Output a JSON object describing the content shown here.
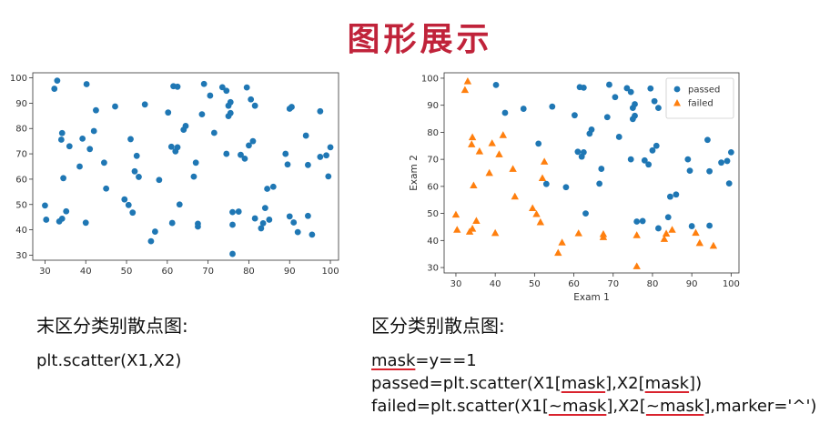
{
  "title": "图形展示",
  "colors": {
    "passed": "#1f77b4",
    "failed": "#ff7f0e",
    "title": "#c0233a",
    "underline": "#d9232e"
  },
  "left_caption": "末区分类别散点图:",
  "right_caption": "区分类别散点图:",
  "left_code": "plt.scatter(X1,X2)",
  "right_code": {
    "line1": {
      "a": "mask",
      "b": "=y==1"
    },
    "line2": {
      "a": "passed=plt.scatter(X1[",
      "b": "mask",
      "c": "],X2[",
      "d": "mask",
      "e": "])"
    },
    "line3": {
      "a": "failed=plt.scatter(X1[",
      "b": "~mask",
      "c": "],X2[",
      "d": "~mask",
      "e": "],marker='^')"
    }
  },
  "chart_data": [
    {
      "type": "scatter",
      "title": "",
      "xlabel": "",
      "ylabel": "",
      "xlim": [
        27,
        102
      ],
      "ylim": [
        28,
        102
      ],
      "xticks": [
        30,
        40,
        50,
        60,
        70,
        80,
        90,
        100
      ],
      "yticks": [
        30,
        40,
        50,
        60,
        70,
        80,
        90,
        100
      ],
      "series": [
        {
          "marker": "circle",
          "points": [
            [
              30,
              49.6
            ],
            [
              30.3,
              44
            ],
            [
              32.3,
              95.7
            ],
            [
              33,
              98.9
            ],
            [
              33.5,
              43.3
            ],
            [
              34,
              75.6
            ],
            [
              34.2,
              78.2
            ],
            [
              34.5,
              60.4
            ],
            [
              34.2,
              44.4
            ],
            [
              35.2,
              47.3
            ],
            [
              36,
              73
            ],
            [
              38.5,
              65
            ],
            [
              39.2,
              76
            ],
            [
              40,
              42.8
            ],
            [
              40.2,
              97.5
            ],
            [
              41,
              71.9
            ],
            [
              42,
              79
            ],
            [
              42.5,
              87.2
            ],
            [
              44.5,
              66.5
            ],
            [
              45,
              56.3
            ],
            [
              47.2,
              88.7
            ],
            [
              49.5,
              52
            ],
            [
              50.5,
              49.8
            ],
            [
              51,
              75.8
            ],
            [
              51.5,
              46.8
            ],
            [
              52,
              63.1
            ],
            [
              52.5,
              69.2
            ],
            [
              53,
              60.9
            ],
            [
              54.5,
              89.5
            ],
            [
              56,
              35.5
            ],
            [
              57,
              39.3
            ],
            [
              58,
              59.7
            ],
            [
              60.2,
              86.3
            ],
            [
              61,
              72.8
            ],
            [
              61.2,
              42.7
            ],
            [
              61.5,
              96.7
            ],
            [
              62.5,
              96.5
            ],
            [
              62.5,
              72.6
            ],
            [
              62,
              71
            ],
            [
              63,
              50
            ],
            [
              64,
              79.5
            ],
            [
              64.5,
              81
            ],
            [
              67,
              66.5
            ],
            [
              66.5,
              61
            ],
            [
              67.5,
              41.3
            ],
            [
              67.5,
              42.4
            ],
            [
              68.5,
              85.6
            ],
            [
              69,
              97.6
            ],
            [
              70.5,
              93
            ],
            [
              71.5,
              78.3
            ],
            [
              73.5,
              96.3
            ],
            [
              74.5,
              94.9
            ],
            [
              74.5,
              70
            ],
            [
              75,
              84.9
            ],
            [
              75,
              89
            ],
            [
              75.5,
              90.4
            ],
            [
              75.5,
              86.1
            ],
            [
              76,
              47
            ],
            [
              76,
              42
            ],
            [
              76,
              30.5
            ],
            [
              77.5,
              47.2
            ],
            [
              78,
              69.6
            ],
            [
              79,
              68.1
            ],
            [
              79.5,
              96.2
            ],
            [
              80,
              73.3
            ],
            [
              80.5,
              91.5
            ],
            [
              81,
              75
            ],
            [
              81.5,
              89
            ],
            [
              81.5,
              44.5
            ],
            [
              83,
              40.6
            ],
            [
              83.5,
              42.6
            ],
            [
              84,
              48.6
            ],
            [
              84.5,
              56.2
            ],
            [
              85,
              44
            ],
            [
              86,
              57
            ],
            [
              89,
              70
            ],
            [
              89.5,
              65.8
            ],
            [
              90,
              87.8
            ],
            [
              90,
              45.3
            ],
            [
              90.5,
              88.5
            ],
            [
              91,
              42.9
            ],
            [
              92,
              39.1
            ],
            [
              94,
              77.2
            ],
            [
              94.5,
              65.6
            ],
            [
              94.5,
              45.5
            ],
            [
              95.5,
              38.1
            ],
            [
              97.5,
              86.8
            ],
            [
              97.5,
              68.8
            ],
            [
              99,
              69.4
            ],
            [
              99.5,
              61.1
            ],
            [
              100,
              72.6
            ]
          ]
        }
      ]
    },
    {
      "type": "scatter",
      "title": "",
      "xlabel": "Exam 1",
      "ylabel": "Exam 2",
      "xlim": [
        27,
        102
      ],
      "ylim": [
        28,
        102
      ],
      "xticks": [
        30,
        40,
        50,
        60,
        70,
        80,
        90,
        100
      ],
      "yticks": [
        30,
        40,
        50,
        60,
        70,
        80,
        90,
        100
      ],
      "legend": "top-right",
      "series": [
        {
          "name": "passed",
          "marker": "circle",
          "points": [
            [
              40.2,
              97.5
            ],
            [
              42.5,
              87.2
            ],
            [
              47.2,
              88.7
            ],
            [
              51,
              75.8
            ],
            [
              53,
              60.9
            ],
            [
              54.5,
              89.5
            ],
            [
              58,
              59.7
            ],
            [
              60.2,
              86.3
            ],
            [
              61,
              72.8
            ],
            [
              61.5,
              96.7
            ],
            [
              62.5,
              96.5
            ],
            [
              62.5,
              72.6
            ],
            [
              62,
              71
            ],
            [
              63,
              50
            ],
            [
              64,
              79.5
            ],
            [
              64.5,
              81
            ],
            [
              67,
              66.5
            ],
            [
              66.5,
              61
            ],
            [
              68.5,
              85.6
            ],
            [
              69,
              97.6
            ],
            [
              70.5,
              93
            ],
            [
              71.5,
              78.3
            ],
            [
              73.5,
              96.3
            ],
            [
              74.5,
              94.9
            ],
            [
              74.5,
              70
            ],
            [
              75,
              84.9
            ],
            [
              75,
              89
            ],
            [
              75.5,
              90.4
            ],
            [
              75.5,
              86.1
            ],
            [
              76,
              47
            ],
            [
              77.5,
              47.2
            ],
            [
              78,
              69.6
            ],
            [
              79,
              68.1
            ],
            [
              79.5,
              96.2
            ],
            [
              80,
              73.3
            ],
            [
              80.5,
              91.5
            ],
            [
              81,
              75
            ],
            [
              81.5,
              89
            ],
            [
              81.5,
              44.5
            ],
            [
              84,
              48.6
            ],
            [
              84.5,
              56.2
            ],
            [
              86,
              57
            ],
            [
              89,
              70
            ],
            [
              89.5,
              65.8
            ],
            [
              90,
              87.8
            ],
            [
              90,
              45.3
            ],
            [
              90.5,
              88.5
            ],
            [
              94,
              77.2
            ],
            [
              94.5,
              65.6
            ],
            [
              94.5,
              45.5
            ],
            [
              97.5,
              86.8
            ],
            [
              97.5,
              68.8
            ],
            [
              99,
              69.4
            ],
            [
              99.5,
              61.1
            ],
            [
              100,
              72.6
            ]
          ]
        },
        {
          "name": "failed",
          "marker": "triangle",
          "points": [
            [
              30,
              49.6
            ],
            [
              30.3,
              44
            ],
            [
              32.3,
              95.7
            ],
            [
              33,
              98.9
            ],
            [
              33.5,
              43.3
            ],
            [
              34,
              75.6
            ],
            [
              34.2,
              78.2
            ],
            [
              34.5,
              60.4
            ],
            [
              34.2,
              44.4
            ],
            [
              35.2,
              47.3
            ],
            [
              36,
              73
            ],
            [
              38.5,
              65
            ],
            [
              39.2,
              76
            ],
            [
              40,
              42.8
            ],
            [
              41,
              71.9
            ],
            [
              42,
              79
            ],
            [
              44.5,
              66.5
            ],
            [
              45,
              56.3
            ],
            [
              49.5,
              52
            ],
            [
              50.5,
              49.8
            ],
            [
              51.5,
              46.8
            ],
            [
              52,
              63.1
            ],
            [
              52.5,
              69.2
            ],
            [
              56,
              35.5
            ],
            [
              57,
              39.3
            ],
            [
              61.2,
              42.7
            ],
            [
              67.5,
              41.3
            ],
            [
              67.5,
              42.4
            ],
            [
              76,
              42
            ],
            [
              76,
              30.5
            ],
            [
              83,
              40.6
            ],
            [
              83.5,
              42.6
            ],
            [
              85,
              44
            ],
            [
              91,
              42.9
            ],
            [
              92,
              39.1
            ],
            [
              95.5,
              38.1
            ]
          ]
        }
      ]
    }
  ]
}
